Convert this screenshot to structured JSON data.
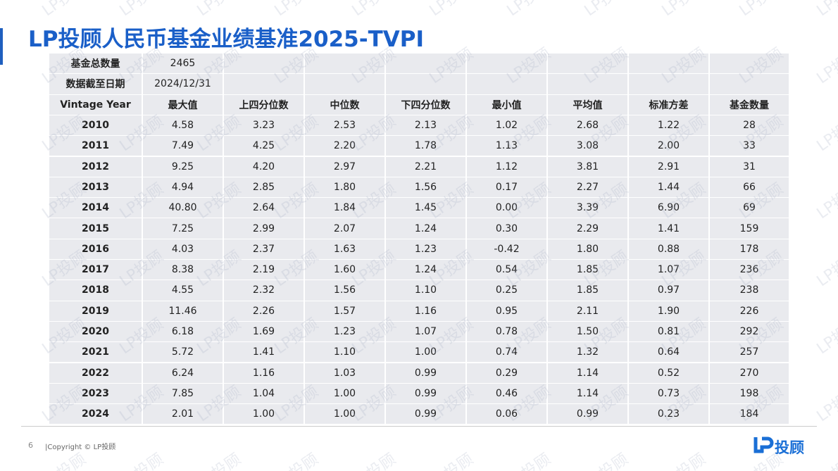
{
  "title": "LP投顾人民币基金业绩基准2025-TVPI",
  "watermark": "LP投顾",
  "table": {
    "summary": [
      [
        "基金总数量",
        "2465"
      ],
      [
        "数据截至日期",
        "2024/12/31"
      ]
    ],
    "header": [
      "Vintage Year",
      "最大值",
      "上四分位数",
      "中位数",
      "下四分位数",
      "最小值",
      "平均值",
      "标准方差",
      "基金数量"
    ],
    "rows": [
      [
        "2010",
        "4.58",
        "3.23",
        "2.53",
        "2.13",
        "1.02",
        "2.68",
        "1.22",
        "28"
      ],
      [
        "2011",
        "7.49",
        "4.25",
        "2.20",
        "1.78",
        "1.13",
        "3.08",
        "2.00",
        "33"
      ],
      [
        "2012",
        "9.25",
        "4.20",
        "2.97",
        "2.21",
        "1.12",
        "3.81",
        "2.91",
        "31"
      ],
      [
        "2013",
        "4.94",
        "2.85",
        "1.80",
        "1.56",
        "0.17",
        "2.27",
        "1.44",
        "66"
      ],
      [
        "2014",
        "40.80",
        "2.64",
        "1.84",
        "1.45",
        "0.00",
        "3.39",
        "6.90",
        "69"
      ],
      [
        "2015",
        "7.25",
        "2.99",
        "2.07",
        "1.24",
        "0.30",
        "2.29",
        "1.41",
        "159"
      ],
      [
        "2016",
        "4.03",
        "2.37",
        "1.63",
        "1.23",
        "-0.42",
        "1.80",
        "0.88",
        "178"
      ],
      [
        "2017",
        "8.38",
        "2.19",
        "1.60",
        "1.24",
        "0.54",
        "1.85",
        "1.07",
        "236"
      ],
      [
        "2018",
        "4.55",
        "2.32",
        "1.56",
        "1.10",
        "0.25",
        "1.85",
        "0.97",
        "238"
      ],
      [
        "2019",
        "11.46",
        "2.26",
        "1.57",
        "1.16",
        "0.95",
        "2.11",
        "1.90",
        "226"
      ],
      [
        "2020",
        "6.18",
        "1.69",
        "1.23",
        "1.07",
        "0.78",
        "1.50",
        "0.81",
        "292"
      ],
      [
        "2021",
        "5.72",
        "1.41",
        "1.10",
        "1.00",
        "0.74",
        "1.32",
        "0.64",
        "257"
      ],
      [
        "2022",
        "6.24",
        "1.16",
        "1.03",
        "0.99",
        "0.29",
        "1.14",
        "0.52",
        "270"
      ],
      [
        "2023",
        "7.85",
        "1.04",
        "1.00",
        "0.99",
        "0.46",
        "1.14",
        "0.73",
        "198"
      ],
      [
        "2024",
        "2.01",
        "1.00",
        "1.00",
        "0.99",
        "0.06",
        "0.99",
        "0.23",
        "184"
      ]
    ]
  },
  "footer": {
    "page": "6",
    "copyright": "|Copyright © LP投顾",
    "logo": "投顾"
  }
}
